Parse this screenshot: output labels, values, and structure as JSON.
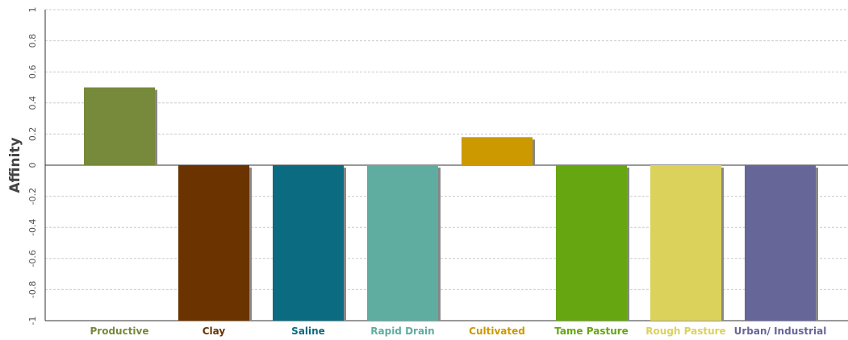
{
  "chart_data": {
    "type": "bar",
    "ylabel": "Affinity",
    "xlabel": "",
    "ylim": [
      -1,
      1
    ],
    "grid": true,
    "yticks": [
      {
        "value": 1,
        "label": "1"
      },
      {
        "value": 0.8,
        "label": "0.8"
      },
      {
        "value": 0.6,
        "label": "0.6"
      },
      {
        "value": 0.4,
        "label": "0.4"
      },
      {
        "value": 0.2,
        "label": "0.2"
      },
      {
        "value": 0,
        "label": "0"
      },
      {
        "value": -0.2,
        "label": "-0.2"
      },
      {
        "value": -0.4,
        "label": "-0.4"
      },
      {
        "value": -0.6,
        "label": "-0.6"
      },
      {
        "value": -0.8,
        "label": "-0.8"
      },
      {
        "value": -1,
        "label": "-1"
      }
    ],
    "categories": [
      "Productive",
      "Clay",
      "Saline",
      "Rapid Drain",
      "Cultivated",
      "Tame Pasture",
      "Rough Pasture",
      "Urban/ Industrial"
    ],
    "values": [
      0.5,
      -1,
      -1,
      -1,
      0.18,
      -1,
      -1,
      -1
    ],
    "colors": [
      "#77893a",
      "#6a3300",
      "#0b6b80",
      "#5fada0",
      "#cc9900",
      "#66a611",
      "#dbd25b",
      "#666699"
    ]
  }
}
